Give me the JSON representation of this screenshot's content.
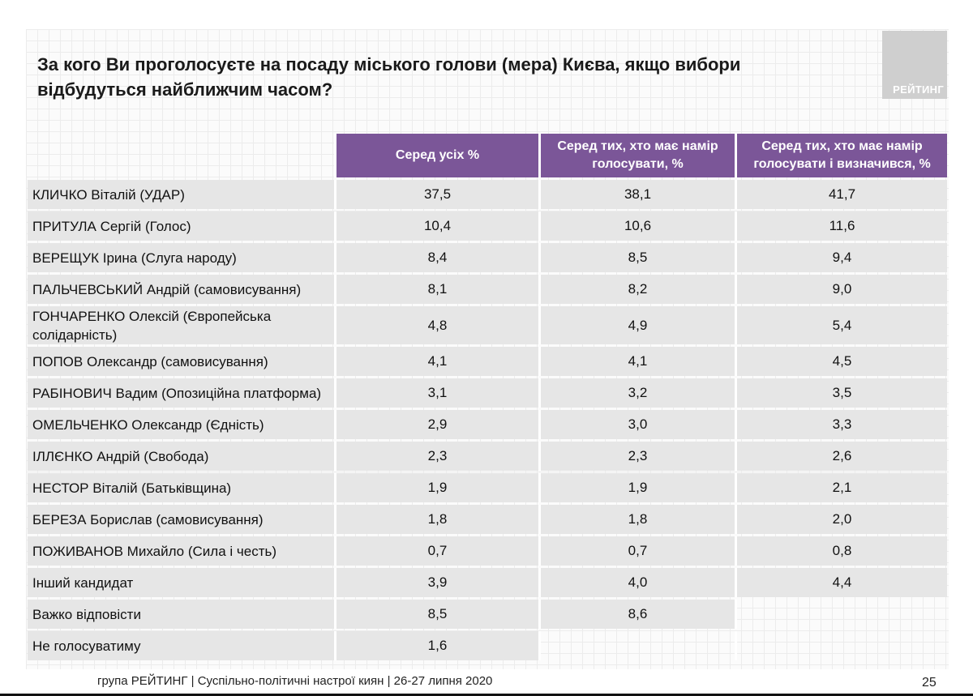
{
  "title": "За кого Ви проголосуєте на посаду міського голови (мера) Києва, якщо вибори відбудуться найближчим часом?",
  "logo_text": "РЕЙТИНГ",
  "table": {
    "headers": [
      "",
      "Серед усіх %",
      "Серед тих, хто має намір голосувати, %",
      "Серед тих, хто має намір голосувати і визначився, %"
    ],
    "rows": [
      {
        "name": "КЛИЧКО Віталій (УДАР)",
        "values": [
          "37,5",
          "38,1",
          "41,7"
        ]
      },
      {
        "name": "ПРИТУЛА Сергій (Голос)",
        "values": [
          "10,4",
          "10,6",
          "11,6"
        ]
      },
      {
        "name": "ВЕРЕЩУК Ірина (Слуга народу)",
        "values": [
          "8,4",
          "8,5",
          "9,4"
        ]
      },
      {
        "name": "ПАЛЬЧЕВСЬКИЙ Андрій (самовисування)",
        "values": [
          "8,1",
          "8,2",
          "9,0"
        ]
      },
      {
        "name": "ГОНЧАРЕНКО Олексій (Європейська солідарність)",
        "values": [
          "4,8",
          "4,9",
          "5,4"
        ]
      },
      {
        "name": "ПОПОВ Олександр (самовисування)",
        "values": [
          "4,1",
          "4,1",
          "4,5"
        ]
      },
      {
        "name": "РАБІНОВИЧ Вадим (Опозиційна платформа)",
        "values": [
          "3,1",
          "3,2",
          "3,5"
        ]
      },
      {
        "name": "ОМЕЛЬЧЕНКО Олександр (Єдність)",
        "values": [
          "2,9",
          "3,0",
          "3,3"
        ]
      },
      {
        "name": "ІЛЛЄНКО Андрій (Свобода)",
        "values": [
          "2,3",
          "2,3",
          "2,6"
        ]
      },
      {
        "name": "НЕСТОР Віталій (Батьківщина)",
        "values": [
          "1,9",
          "1,9",
          "2,1"
        ]
      },
      {
        "name": "БЕРЕЗА Борислав (самовисування)",
        "values": [
          "1,8",
          "1,8",
          "2,0"
        ]
      },
      {
        "name": "ПОЖИВАНОВ Михайло (Сила і честь)",
        "values": [
          "0,7",
          "0,7",
          "0,8"
        ]
      },
      {
        "name": "Інший кандидат",
        "values": [
          "3,9",
          "4,0",
          "4,4"
        ]
      },
      {
        "name": "Важко відповісти",
        "values": [
          "8,5",
          "8,6",
          ""
        ]
      },
      {
        "name": "Не голосуватиму",
        "values": [
          "1,6",
          "",
          ""
        ]
      }
    ]
  },
  "footer": "група РЕЙТИНГ  | Суспільно-політичні настрої киян | 26-27 липня 2020",
  "page_number": "25",
  "colors": {
    "header_bg": "#7b5698",
    "row_bg": "#e6e6e6"
  }
}
